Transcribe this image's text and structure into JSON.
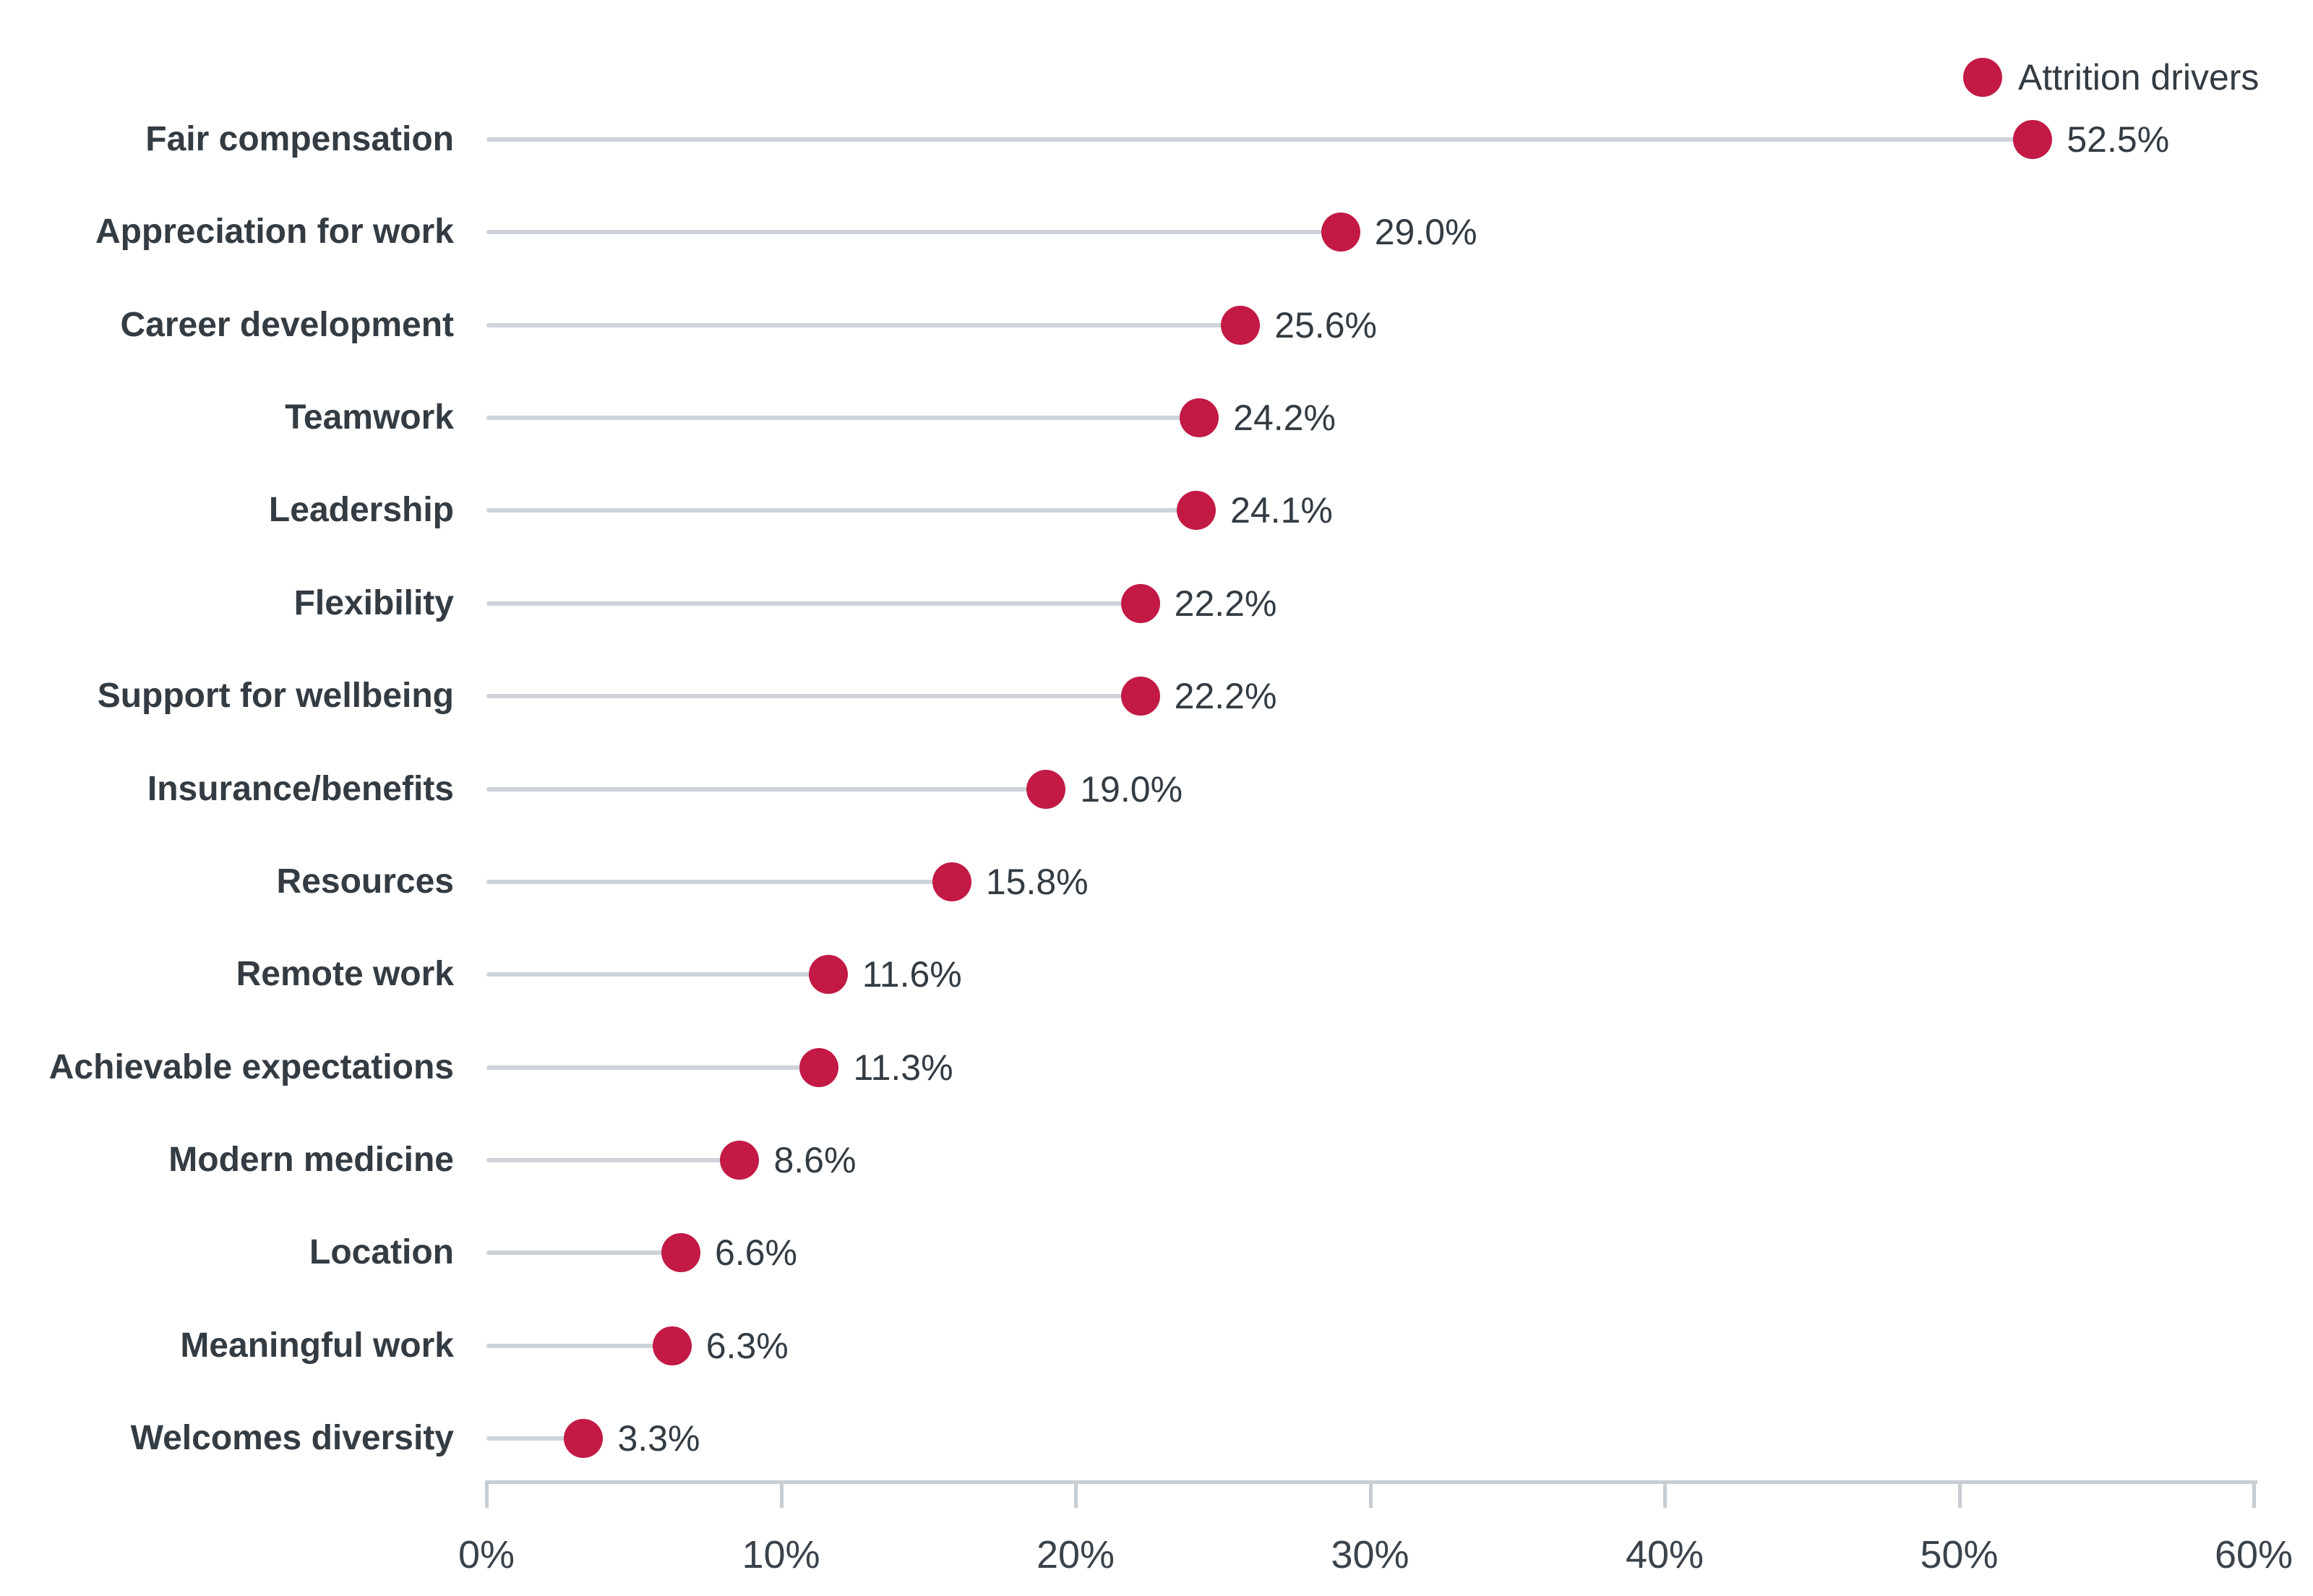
{
  "chart_data": {
    "type": "scatter",
    "variant": "horizontal_lollipop",
    "title": "",
    "xlabel": "",
    "ylabel": "",
    "grid": false,
    "legend": {
      "position": "top-right",
      "label": "Attrition drivers"
    },
    "categories": [
      "Fair compensation",
      "Appreciation for work",
      "Career development",
      "Teamwork",
      "Leadership",
      "Flexibility",
      "Support for wellbeing",
      "Insurance/benefits",
      "Resources",
      "Remote work",
      "Achievable expectations",
      "Modern medicine",
      "Location",
      "Meaningful work",
      "Welcomes diversity"
    ],
    "values": [
      52.5,
      29.0,
      25.6,
      24.2,
      24.1,
      22.2,
      22.2,
      19.0,
      15.8,
      11.6,
      11.3,
      8.6,
      6.6,
      6.3,
      3.3
    ],
    "value_labels": [
      "52.5%",
      "29.0%",
      "25.6%",
      "24.2%",
      "24.1%",
      "22.2%",
      "22.2%",
      "19.0%",
      "15.8%",
      "11.6%",
      "11.3%",
      "8.6%",
      "6.6%",
      "6.3%",
      "3.3%"
    ],
    "xlim": [
      0,
      60
    ],
    "x_ticks": [
      {
        "value": 0,
        "label": "0%"
      },
      {
        "value": 10,
        "label": "10%"
      },
      {
        "value": 20,
        "label": "20%"
      },
      {
        "value": 30,
        "label": "30%"
      },
      {
        "value": 40,
        "label": "40%"
      },
      {
        "value": 50,
        "label": "50%"
      },
      {
        "value": 60,
        "label": "60%"
      }
    ],
    "colors": {
      "dot": "#c21945",
      "stem": "#cdd3d9",
      "axis": "#c7cdd4",
      "category_text": "#333b43",
      "value_text": "#333b43",
      "tick_text": "#3a434c",
      "background": "#ffffff"
    }
  }
}
